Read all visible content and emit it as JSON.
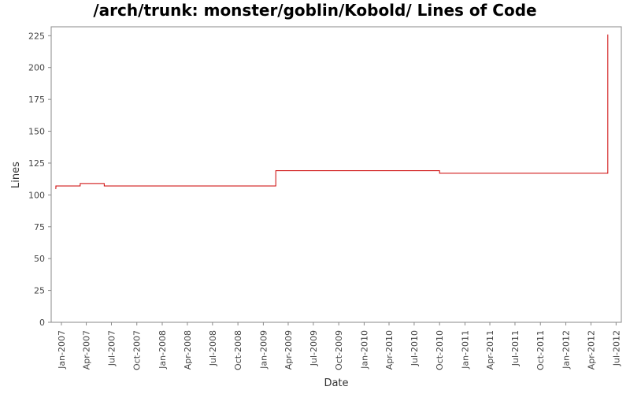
{
  "chart_data": {
    "type": "line",
    "title": "/arch/trunk: monster/goblin/Kobold/ Lines of Code",
    "xlabel": "Date",
    "ylabel": "Lines",
    "ylim": [
      0,
      232
    ],
    "xlim": [
      "2006-11-25",
      "2012-07-20"
    ],
    "yticks": [
      0,
      25,
      50,
      75,
      100,
      125,
      150,
      175,
      200,
      225
    ],
    "xticks": [
      "Jan-2007",
      "Apr-2007",
      "Jul-2007",
      "Oct-2007",
      "Jan-2008",
      "Apr-2008",
      "Jul-2008",
      "Oct-2008",
      "Jan-2009",
      "Apr-2009",
      "Jul-2009",
      "Oct-2009",
      "Jan-2010",
      "Apr-2010",
      "Jul-2010",
      "Oct-2010",
      "Jan-2011",
      "Apr-2011",
      "Jul-2011",
      "Oct-2011",
      "Jan-2012",
      "Apr-2012",
      "Jul-2012"
    ],
    "step": true,
    "grid": false,
    "color": "#cc0000",
    "series": [
      {
        "x": [
          "2006-12-10",
          "2006-12-12",
          "2007-03-10",
          "2007-06-05",
          "2009-02-15",
          "2010-10-01",
          "2012-06-01"
        ],
        "y": [
          105,
          107,
          109,
          107,
          119,
          117,
          226
        ]
      }
    ]
  }
}
